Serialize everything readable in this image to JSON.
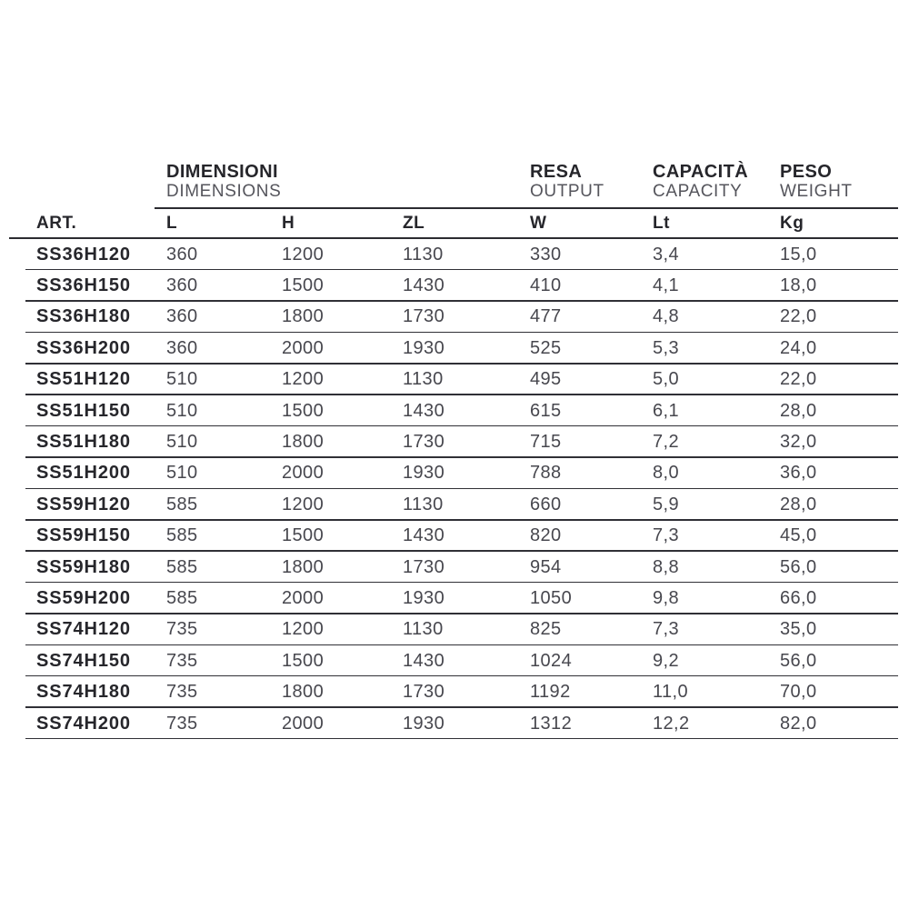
{
  "page": {
    "background": "#ffffff"
  },
  "table": {
    "colors": {
      "heading_text": "#26262b",
      "value_text": "#47474e",
      "subtitle_text": "#55555c",
      "rule_lines": "#2b2b30"
    },
    "groups": [
      {
        "title": "DIMENSIONI",
        "subtitle": "DIMENSIONS",
        "span_columns": [
          "L",
          "H",
          "ZL"
        ]
      },
      {
        "title": "RESA",
        "subtitle": "OUTPUT",
        "span_columns": [
          "W"
        ]
      },
      {
        "title": "CAPACITÀ",
        "subtitle": "CAPACITY",
        "span_columns": [
          "Lt"
        ]
      },
      {
        "title": "PESO",
        "subtitle": "WEIGHT",
        "span_columns": [
          "Kg"
        ]
      }
    ],
    "columns": [
      "ART.",
      "L",
      "H",
      "ZL",
      "W",
      "Lt",
      "Kg"
    ],
    "rows": [
      [
        "SS36H120",
        "360",
        "1200",
        "1130",
        "330",
        "3,4",
        "15,0"
      ],
      [
        "SS36H150",
        "360",
        "1500",
        "1430",
        "410",
        "4,1",
        "18,0"
      ],
      [
        "SS36H180",
        "360",
        "1800",
        "1730",
        "477",
        "4,8",
        "22,0"
      ],
      [
        "SS36H200",
        "360",
        "2000",
        "1930",
        "525",
        "5,3",
        "24,0"
      ],
      [
        "SS51H120",
        "510",
        "1200",
        "1130",
        "495",
        "5,0",
        "22,0"
      ],
      [
        "SS51H150",
        "510",
        "1500",
        "1430",
        "615",
        "6,1",
        "28,0"
      ],
      [
        "SS51H180",
        "510",
        "1800",
        "1730",
        "715",
        "7,2",
        "32,0"
      ],
      [
        "SS51H200",
        "510",
        "2000",
        "1930",
        "788",
        "8,0",
        "36,0"
      ],
      [
        "SS59H120",
        "585",
        "1200",
        "1130",
        "660",
        "5,9",
        "28,0"
      ],
      [
        "SS59H150",
        "585",
        "1500",
        "1430",
        "820",
        "7,3",
        "45,0"
      ],
      [
        "SS59H180",
        "585",
        "1800",
        "1730",
        "954",
        "8,8",
        "56,0"
      ],
      [
        "SS59H200",
        "585",
        "2000",
        "1930",
        "1050",
        "9,8",
        "66,0"
      ],
      [
        "SS74H120",
        "735",
        "1200",
        "1130",
        "825",
        "7,3",
        "35,0"
      ],
      [
        "SS74H150",
        "735",
        "1500",
        "1430",
        "1024",
        "9,2",
        "56,0"
      ],
      [
        "SS74H180",
        "735",
        "1800",
        "1730",
        "1192",
        "11,0",
        "70,0"
      ],
      [
        "SS74H200",
        "735",
        "2000",
        "1930",
        "1312",
        "12,2",
        "82,0"
      ]
    ]
  }
}
